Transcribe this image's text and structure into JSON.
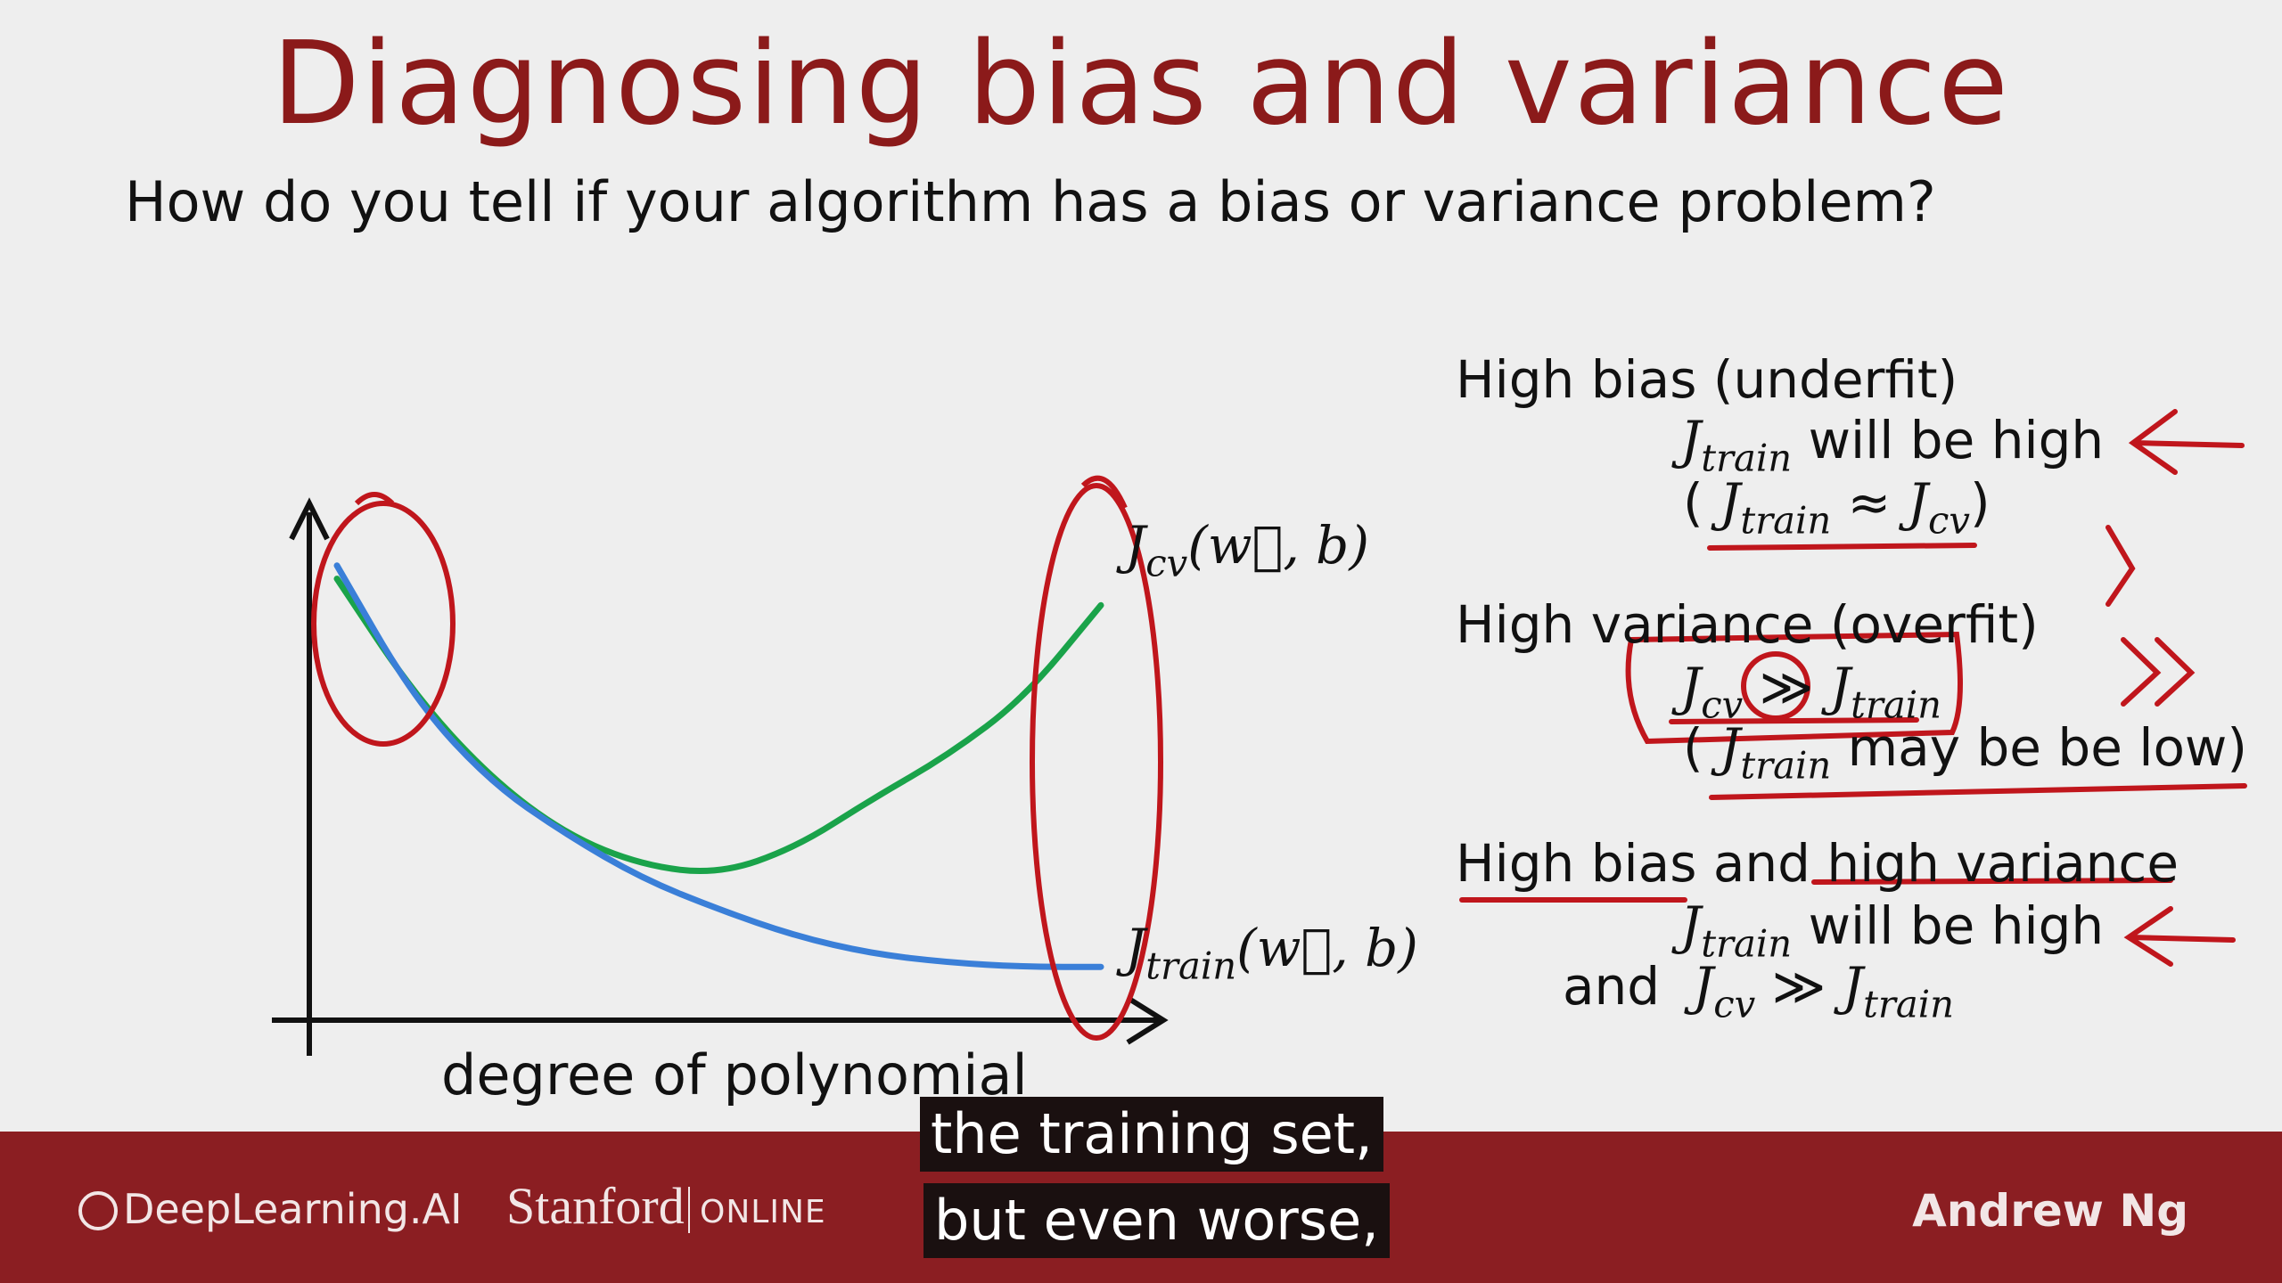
{
  "slide": {
    "title": "Diagnosing bias and variance",
    "subtitle": "How do you tell if your algorithm has a bias or variance problem?"
  },
  "chart": {
    "xlabel": "degree of polynomial",
    "cv_label": {
      "j": "J",
      "sub": "cv",
      "args": "(w⃗, b)"
    },
    "train_label": {
      "j": "J",
      "sub": "train",
      "args": "(w⃗, b)"
    },
    "colors": {
      "cv_curve": "#1aa34a",
      "train_curve": "#3a7fd8",
      "annotation": "#c0161c",
      "axis": "#111111"
    }
  },
  "chart_data": {
    "type": "line",
    "title": "",
    "xlabel": "degree of polynomial",
    "ylabel": "",
    "series": [
      {
        "name": "J_cv(w,b)",
        "x": [
          0.0,
          0.1,
          0.2,
          0.3,
          0.4,
          0.5,
          0.6,
          0.7,
          0.8,
          0.9,
          1.0
        ],
        "values": [
          0.92,
          0.66,
          0.47,
          0.34,
          0.27,
          0.25,
          0.31,
          0.42,
          0.52,
          0.65,
          0.86
        ]
      },
      {
        "name": "J_train(w,b)",
        "x": [
          0.0,
          0.1,
          0.2,
          0.3,
          0.4,
          0.5,
          0.6,
          0.7,
          0.8,
          0.9,
          1.0
        ],
        "values": [
          0.95,
          0.65,
          0.46,
          0.34,
          0.24,
          0.17,
          0.11,
          0.07,
          0.05,
          0.04,
          0.04
        ]
      }
    ]
  },
  "right_panel": {
    "high_bias": {
      "heading": "High bias (underfit)",
      "line1": {
        "j": "J",
        "sub": "train",
        "rest": " will be high"
      },
      "line2": {
        "open": "( ",
        "j1": "J",
        "sub1": "train",
        "op": " ≈ ",
        "j2": "J",
        "sub2": "cv",
        "close": ")"
      }
    },
    "high_variance": {
      "heading": "High variance (overfit)",
      "line1": {
        "j1": "J",
        "sub1": "cv",
        "op": " ≫ ",
        "j2": "J",
        "sub2": "train"
      },
      "line2": {
        "open": "( ",
        "j": "J",
        "sub": "train",
        "rest": " may be be low)"
      }
    },
    "both": {
      "heading": "High bias and high variance",
      "line1": {
        "j": "J",
        "sub": "train",
        "rest": " will be high"
      },
      "line2": {
        "and": "and",
        "j1": "J",
        "sub1": "cv",
        "op": " ≫ ",
        "j2": "J",
        "sub2": "train"
      }
    }
  },
  "footer": {
    "deeplearning": "DeepLearning.AI",
    "stanford": "Stanford",
    "online": "ONLINE",
    "author": "Andrew Ng"
  },
  "captions": [
    "the training set,",
    "but even worse,"
  ]
}
